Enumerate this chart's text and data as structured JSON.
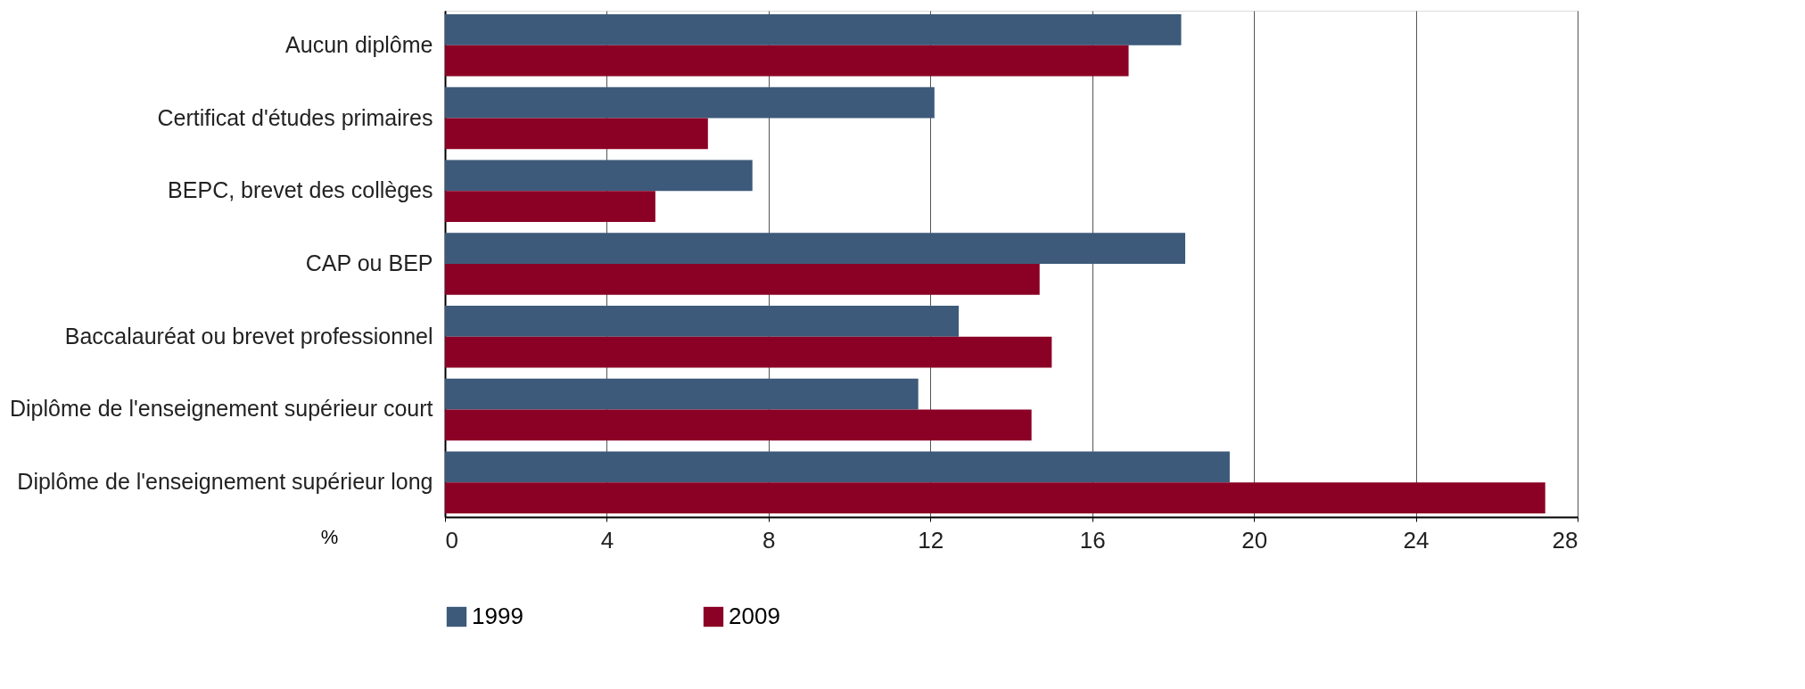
{
  "chart_data": {
    "type": "bar",
    "orientation": "horizontal",
    "xlabel": "%",
    "categories": [
      "Aucun diplôme",
      "Certificat d'études primaires",
      "BEPC, brevet des collèges",
      "CAP ou BEP",
      "Baccalauréat ou brevet professionnel",
      "Diplôme de l'enseignement supérieur court",
      "Diplôme de  l'enseignement supérieur long"
    ],
    "series": [
      {
        "name": "1999",
        "color": "#3d5a7a",
        "values": [
          18.2,
          12.1,
          7.6,
          18.3,
          12.7,
          11.7,
          19.4
        ]
      },
      {
        "name": "2009",
        "color": "#8b0025",
        "values": [
          16.9,
          6.5,
          5.2,
          14.7,
          15.0,
          14.5,
          27.2
        ]
      }
    ],
    "xlim": [
      0,
      28
    ],
    "xticks": [
      0,
      4,
      8,
      12,
      16,
      20,
      24,
      28
    ],
    "grid": "x",
    "legend": "bottom"
  }
}
